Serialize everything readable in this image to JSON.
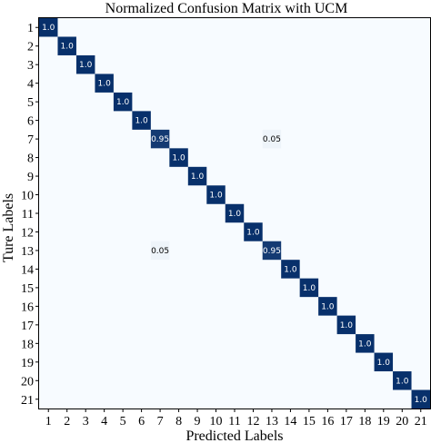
{
  "chart_data": {
    "type": "heatmap",
    "title": "Normalized Confusion Matrix with UCM",
    "xlabel": "Predicted Labels",
    "ylabel": "Ture Labels",
    "x_tick_labels": [
      "1",
      "2",
      "3",
      "4",
      "5",
      "6",
      "7",
      "8",
      "9",
      "10",
      "11",
      "12",
      "13",
      "14",
      "15",
      "16",
      "17",
      "18",
      "19",
      "20",
      "21"
    ],
    "y_tick_labels": [
      "1",
      "2",
      "3",
      "4",
      "5",
      "6",
      "7",
      "8",
      "9",
      "10",
      "11",
      "12",
      "13",
      "14",
      "15",
      "16",
      "17",
      "18",
      "19",
      "20",
      "21"
    ],
    "cells": [
      {
        "row": 1,
        "col": 1,
        "value": 1.0,
        "label": "1.0"
      },
      {
        "row": 2,
        "col": 2,
        "value": 1.0,
        "label": "1.0"
      },
      {
        "row": 3,
        "col": 3,
        "value": 1.0,
        "label": "1.0"
      },
      {
        "row": 4,
        "col": 4,
        "value": 1.0,
        "label": "1.0"
      },
      {
        "row": 5,
        "col": 5,
        "value": 1.0,
        "label": "1.0"
      },
      {
        "row": 6,
        "col": 6,
        "value": 1.0,
        "label": "1.0"
      },
      {
        "row": 7,
        "col": 7,
        "value": 0.95,
        "label": "0.95"
      },
      {
        "row": 7,
        "col": 13,
        "value": 0.05,
        "label": "0.05"
      },
      {
        "row": 8,
        "col": 8,
        "value": 1.0,
        "label": "1.0"
      },
      {
        "row": 9,
        "col": 9,
        "value": 1.0,
        "label": "1.0"
      },
      {
        "row": 10,
        "col": 10,
        "value": 1.0,
        "label": "1.0"
      },
      {
        "row": 11,
        "col": 11,
        "value": 1.0,
        "label": "1.0"
      },
      {
        "row": 12,
        "col": 12,
        "value": 1.0,
        "label": "1.0"
      },
      {
        "row": 13,
        "col": 7,
        "value": 0.05,
        "label": "0.05"
      },
      {
        "row": 13,
        "col": 13,
        "value": 0.95,
        "label": "0.95"
      },
      {
        "row": 14,
        "col": 14,
        "value": 1.0,
        "label": "1.0"
      },
      {
        "row": 15,
        "col": 15,
        "value": 1.0,
        "label": "1.0"
      },
      {
        "row": 16,
        "col": 16,
        "value": 1.0,
        "label": "1.0"
      },
      {
        "row": 17,
        "col": 17,
        "value": 1.0,
        "label": "1.0"
      },
      {
        "row": 18,
        "col": 18,
        "value": 1.0,
        "label": "1.0"
      },
      {
        "row": 19,
        "col": 19,
        "value": 1.0,
        "label": "1.0"
      },
      {
        "row": 20,
        "col": 20,
        "value": 1.0,
        "label": "1.0"
      },
      {
        "row": 21,
        "col": 21,
        "value": 1.0,
        "label": "1.0"
      }
    ],
    "value_range": [
      0,
      1
    ],
    "colormap": "Blues",
    "colors": {
      "background": "#f7fbff",
      "high": "#08306b",
      "high_text": "#ffffff",
      "low": "#eef4fa",
      "low_text": "#000000",
      "frame": "#000000"
    }
  }
}
